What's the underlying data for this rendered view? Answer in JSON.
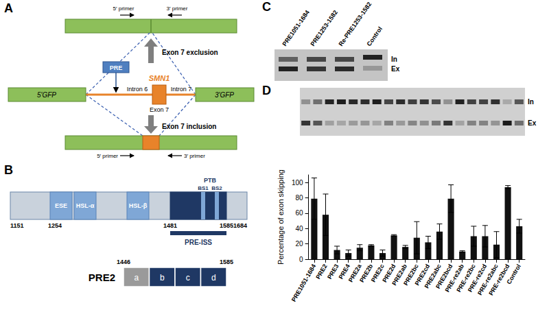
{
  "panels": {
    "A": {
      "label": "A",
      "primers": [
        "5′ primer",
        "3′ primer"
      ],
      "exclusion": "Exon 7 exclusion",
      "inclusion": "Exon 7 inclusion",
      "gfp": [
        "5′GFP",
        "3′GFP"
      ],
      "pre": "PRE",
      "gene": "SMN1",
      "introns": [
        "Intron 6",
        "Intron 7"
      ],
      "exon": "Exon 7"
    },
    "B": {
      "label": "B",
      "domains": [
        "ESE",
        "HSL-α",
        "HSL-β"
      ],
      "ptb": "PTB",
      "binding_sites": [
        "BS1",
        "BS2"
      ],
      "positions": [
        1151,
        1254,
        1481,
        1585,
        1684
      ],
      "iss": "PRE-ISS",
      "pre2": {
        "name": "PRE2",
        "start": 1446,
        "end": 1585,
        "segments": [
          "a",
          "b",
          "c",
          "d"
        ]
      }
    },
    "C": {
      "label": "C",
      "lanes": [
        "PRE1051-1684",
        "PRE1253-1582",
        "Re-PRE1253-1582",
        "Control"
      ],
      "bands": [
        "In",
        "Ex"
      ]
    },
    "D": {
      "label": "D",
      "bands": [
        "In",
        "Ex"
      ]
    }
  },
  "chart_data": {
    "type": "bar",
    "categories": [
      "PRE1051-1684",
      "PRE2",
      "PRE3",
      "PRE4",
      "PRE2a",
      "PRE2b",
      "PRE2c",
      "PRE2d",
      "PRE2ab",
      "PRE2bc",
      "PRE2cd",
      "PRE2abc",
      "PRE2bcd",
      "PRE-re2ab",
      "PRE-re2bc",
      "PRE-re2cd",
      "PRE-re2abc",
      "PRE-re2bcd",
      "Control"
    ],
    "values": [
      79,
      58,
      12,
      8,
      15,
      18,
      8,
      31,
      16,
      28,
      22,
      36,
      79,
      10,
      30,
      30,
      19,
      94,
      43
    ],
    "errors": [
      27,
      27,
      5,
      4,
      4,
      1,
      4,
      1,
      2,
      21,
      8,
      10,
      18,
      1,
      13,
      14,
      17,
      2,
      9
    ],
    "color": "#111111",
    "ylabel": "Percentage of exon skipping",
    "ylim": [
      0,
      110
    ],
    "yticks": [
      0,
      20,
      40,
      60,
      80,
      100
    ],
    "grid": false
  }
}
